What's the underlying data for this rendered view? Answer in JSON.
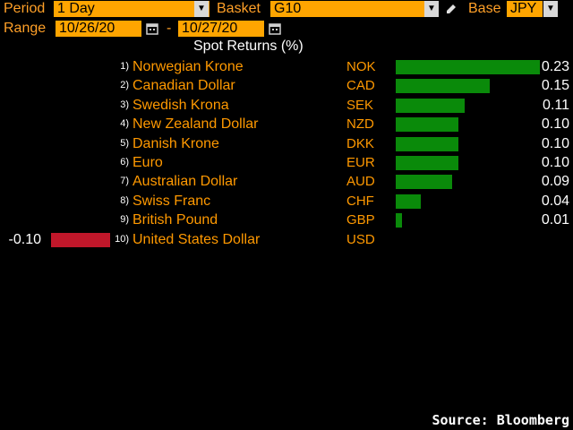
{
  "header": {
    "period_label": "Period",
    "period_value": "1 Day",
    "basket_label": "Basket",
    "basket_value": "G10",
    "base_label": "Base",
    "base_value": "JPY",
    "range_label": "Range",
    "range_start": "10/26/20",
    "range_dash": "-",
    "range_end": "10/27/20"
  },
  "chart_data": {
    "type": "bar",
    "title": "Spot Returns (%)",
    "colors": {
      "positive": "#0a8a0a",
      "negative": "#c0172a"
    },
    "rows": [
      {
        "rank": "1)",
        "name": "Norwegian Krone",
        "code": "NOK",
        "value": 0.23,
        "label": "0.23"
      },
      {
        "rank": "2)",
        "name": "Canadian Dollar",
        "code": "CAD",
        "value": 0.15,
        "label": "0.15"
      },
      {
        "rank": "3)",
        "name": "Swedish Krona",
        "code": "SEK",
        "value": 0.11,
        "label": "0.11"
      },
      {
        "rank": "4)",
        "name": "New Zealand Dollar",
        "code": "NZD",
        "value": 0.1,
        "label": "0.10"
      },
      {
        "rank": "5)",
        "name": "Danish Krone",
        "code": "DKK",
        "value": 0.1,
        "label": "0.10"
      },
      {
        "rank": "6)",
        "name": "Euro",
        "code": "EUR",
        "value": 0.1,
        "label": "0.10"
      },
      {
        "rank": "7)",
        "name": "Australian Dollar",
        "code": "AUD",
        "value": 0.09,
        "label": "0.09"
      },
      {
        "rank": "8)",
        "name": "Swiss Franc",
        "code": "CHF",
        "value": 0.04,
        "label": "0.04"
      },
      {
        "rank": "9)",
        "name": "British Pound",
        "code": "GBP",
        "value": 0.01,
        "label": "0.01"
      },
      {
        "rank": "10)",
        "name": "United States Dollar",
        "code": "USD",
        "value": -0.1,
        "label": "-0.10"
      }
    ]
  },
  "footer": {
    "source": "Source: Bloomberg"
  }
}
